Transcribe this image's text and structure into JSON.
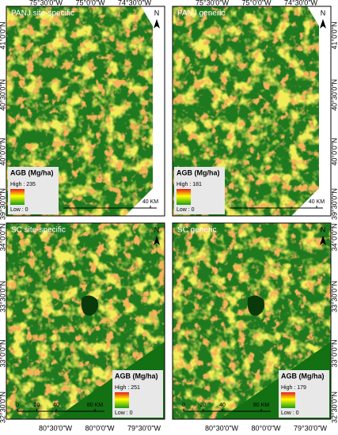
{
  "panels": [
    {
      "title": "PANJ site-specific",
      "legend": {
        "title": "AGB (Mg/ha)",
        "high": "High : 235",
        "low": "Low : 0"
      },
      "north": "N",
      "scale": [
        "40 KM"
      ]
    },
    {
      "title": "PANJ generic",
      "legend": {
        "title": "AGB (Mg/ha)",
        "high": "High : 181",
        "low": "Low : 0"
      },
      "north": "N",
      "scale": [
        "40 KM"
      ]
    },
    {
      "title": "SC site-specific",
      "legend": {
        "title": "AGB (Mg/ha)",
        "high": "High : 251",
        "low": "Low : 0"
      },
      "north": "N",
      "scale": [
        "0",
        "20",
        "40",
        "80 KM"
      ]
    },
    {
      "title": "SC generic",
      "legend": {
        "title": "AGB (Mg/ha)",
        "high": "High : 179",
        "low": "Low : 0"
      },
      "north": "N",
      "scale": [
        "0",
        "20",
        "40",
        "80 KM"
      ]
    }
  ],
  "top_lon": [
    "75°30'0\"W",
    "75°0'0\"W",
    "74°30'0\"W"
  ],
  "top_lat": [
    "41°0'0\"N",
    "40°30'0\"N",
    "40°0'0\"N",
    "39°30'0\"N"
  ],
  "bottom_lat": [
    "34°0'0\"N",
    "33°30'0\"N",
    "33°0'0\"N",
    "32°30'0\"N"
  ],
  "bottom_lon": [
    "80°30'0\"W",
    "80°0'0\"W",
    "79°30'0\"W"
  ]
}
